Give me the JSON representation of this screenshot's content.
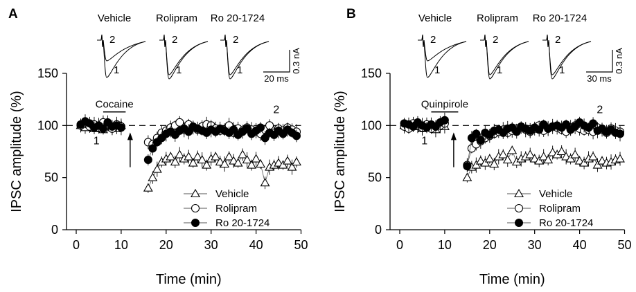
{
  "chart_data": [
    {
      "type": "scatter",
      "panel_label": "A",
      "xlabel": "Time (min)",
      "ylabel": "IPSC amplitude (%)",
      "xlim": [
        -2,
        50
      ],
      "ylim": [
        0,
        150
      ],
      "x_ticks": [
        0,
        10,
        20,
        30,
        40,
        50
      ],
      "y_ticks": [
        0,
        50,
        100,
        150
      ],
      "baseline": 100,
      "drug_bar": {
        "label": "Cocaine",
        "start": 6,
        "end": 11
      },
      "arrow_at": 12,
      "marker_labels": [
        {
          "text": "1",
          "x": 4.5,
          "y": 82
        },
        {
          "text": "2",
          "x": 44.5,
          "y": 112
        }
      ],
      "legend": {
        "position": "bottom-right",
        "entries": [
          "Vehicle",
          "Rolipram",
          "Ro 20-1724"
        ]
      },
      "trace_groups": [
        {
          "name": "Vehicle"
        },
        {
          "name": "Rolipram"
        },
        {
          "name": "Ro 20-1724"
        }
      ],
      "trace_labels": [
        "1",
        "2"
      ],
      "scale_bar": {
        "amplitude": "0.3 nA",
        "time": "20 ms"
      },
      "series": [
        {
          "name": "Vehicle",
          "marker": "triangle-open",
          "x": [
            1,
            2,
            3,
            4,
            5,
            6,
            7,
            8,
            9,
            10,
            16,
            17,
            18,
            19,
            20,
            21,
            22,
            23,
            24,
            25,
            26,
            27,
            28,
            29,
            30,
            31,
            32,
            33,
            34,
            35,
            36,
            37,
            38,
            39,
            40,
            41,
            42,
            43,
            44,
            45,
            46,
            47,
            48,
            49
          ],
          "y": [
            100,
            98,
            101,
            97,
            99,
            96,
            101,
            98,
            97,
            100,
            40,
            50,
            58,
            65,
            68,
            70,
            65,
            72,
            68,
            70,
            64,
            70,
            67,
            62,
            68,
            70,
            65,
            63,
            70,
            66,
            64,
            72,
            67,
            62,
            68,
            63,
            45,
            60,
            62,
            64,
            62,
            66,
            60,
            65
          ]
        },
        {
          "name": "Rolipram",
          "marker": "circle-open",
          "x": [
            1,
            2,
            3,
            4,
            5,
            6,
            7,
            8,
            9,
            10,
            16,
            17,
            18,
            19,
            20,
            21,
            22,
            23,
            24,
            25,
            26,
            27,
            28,
            29,
            30,
            31,
            32,
            33,
            34,
            35,
            36,
            37,
            38,
            39,
            40,
            41,
            42,
            43,
            44,
            45,
            46,
            47,
            48,
            49
          ],
          "y": [
            100,
            102,
            99,
            101,
            98,
            103,
            100,
            97,
            101,
            99,
            84,
            82,
            88,
            93,
            95,
            98,
            100,
            103,
            96,
            101,
            98,
            96,
            99,
            101,
            100,
            97,
            95,
            96,
            100,
            93,
            97,
            95,
            98,
            96,
            94,
            92,
            96,
            100,
            93,
            97,
            95,
            98,
            96,
            94
          ]
        },
        {
          "name": "Ro 20-1724",
          "marker": "circle-filled",
          "x": [
            1,
            2,
            3,
            4,
            5,
            6,
            7,
            8,
            9,
            10,
            16,
            17,
            18,
            19,
            20,
            21,
            22,
            23,
            24,
            25,
            26,
            27,
            28,
            29,
            30,
            31,
            32,
            33,
            34,
            35,
            36,
            37,
            38,
            39,
            40,
            41,
            42,
            43,
            44,
            45,
            46,
            47,
            48,
            49
          ],
          "y": [
            101,
            104,
            102,
            98,
            100,
            97,
            103,
            99,
            100,
            98,
            67,
            78,
            84,
            88,
            92,
            94,
            91,
            95,
            97,
            94,
            99,
            97,
            95,
            93,
            96,
            94,
            97,
            95,
            93,
            96,
            91,
            94,
            97,
            92,
            95,
            98,
            88,
            93,
            91,
            95,
            92,
            96,
            93,
            90
          ]
        }
      ]
    },
    {
      "type": "scatter",
      "panel_label": "B",
      "xlabel": "Time (min)",
      "ylabel": "IPSC amplitude (%)",
      "xlim": [
        -2,
        50
      ],
      "ylim": [
        0,
        150
      ],
      "x_ticks": [
        0,
        10,
        20,
        30,
        40,
        50
      ],
      "y_ticks": [
        0,
        50,
        100,
        150
      ],
      "baseline": 100,
      "drug_bar": {
        "label": "Quinpirole",
        "start": 7,
        "end": 13
      },
      "arrow_at": 12,
      "marker_labels": [
        {
          "text": "1",
          "x": 5.5,
          "y": 82
        },
        {
          "text": "2",
          "x": 44.5,
          "y": 112
        }
      ],
      "legend": {
        "position": "bottom-right",
        "entries": [
          "Vehicle",
          "Rolipram",
          "Ro 20-1724"
        ]
      },
      "trace_groups": [
        {
          "name": "Vehicle"
        },
        {
          "name": "Rolipram"
        },
        {
          "name": "Ro 20-1724"
        }
      ],
      "trace_labels": [
        "1",
        "2"
      ],
      "scale_bar": {
        "amplitude": "0.3 nA",
        "time": "30 ms"
      },
      "series": [
        {
          "name": "Vehicle",
          "marker": "triangle-open",
          "x": [
            1,
            2,
            3,
            4,
            5,
            6,
            7,
            8,
            9,
            10,
            15,
            16,
            17,
            18,
            19,
            20,
            21,
            22,
            23,
            24,
            25,
            26,
            27,
            28,
            29,
            30,
            31,
            32,
            33,
            34,
            35,
            36,
            37,
            38,
            39,
            40,
            41,
            42,
            43,
            44,
            45,
            46,
            47,
            48,
            49
          ],
          "y": [
            100,
            98,
            101,
            99,
            97,
            100,
            98,
            96,
            100,
            99,
            50,
            60,
            62,
            66,
            64,
            68,
            63,
            70,
            72,
            67,
            76,
            65,
            68,
            70,
            72,
            68,
            66,
            70,
            67,
            74,
            72,
            75,
            70,
            68,
            72,
            66,
            64,
            68,
            70,
            62,
            66,
            64,
            65,
            67,
            68
          ]
        },
        {
          "name": "Rolipram",
          "marker": "circle-open",
          "x": [
            1,
            2,
            3,
            4,
            5,
            6,
            7,
            8,
            9,
            10,
            15,
            16,
            17,
            18,
            19,
            20,
            21,
            22,
            23,
            24,
            25,
            26,
            27,
            28,
            29,
            30,
            31,
            32,
            33,
            34,
            35,
            36,
            37,
            38,
            39,
            40,
            41,
            42,
            43,
            44,
            45,
            46,
            47,
            48,
            49
          ],
          "y": [
            99,
            97,
            102,
            100,
            98,
            101,
            97,
            99,
            100,
            102,
            62,
            78,
            82,
            85,
            88,
            90,
            92,
            94,
            96,
            93,
            95,
            97,
            98,
            96,
            94,
            97,
            100,
            95,
            97,
            99,
            98,
            96,
            94,
            98,
            100,
            97,
            95,
            96,
            94,
            98,
            96,
            93,
            97,
            95,
            94
          ]
        },
        {
          "name": "Ro 20-1724",
          "marker": "circle-filled",
          "x": [
            1,
            2,
            3,
            4,
            5,
            6,
            7,
            8,
            9,
            10,
            15,
            16,
            17,
            18,
            19,
            20,
            21,
            22,
            23,
            24,
            25,
            26,
            27,
            28,
            29,
            30,
            31,
            32,
            33,
            34,
            35,
            36,
            37,
            38,
            39,
            40,
            41,
            42,
            43,
            44,
            45,
            46,
            47,
            48,
            49
          ],
          "y": [
            102,
            101,
            99,
            103,
            100,
            98,
            101,
            99,
            103,
            105,
            61,
            88,
            92,
            86,
            93,
            91,
            95,
            96,
            93,
            97,
            98,
            94,
            99,
            97,
            95,
            98,
            96,
            101,
            97,
            99,
            100,
            98,
            101,
            96,
            99,
            103,
            100,
            98,
            102,
            95,
            97,
            94,
            96,
            93,
            92
          ]
        }
      ]
    }
  ]
}
